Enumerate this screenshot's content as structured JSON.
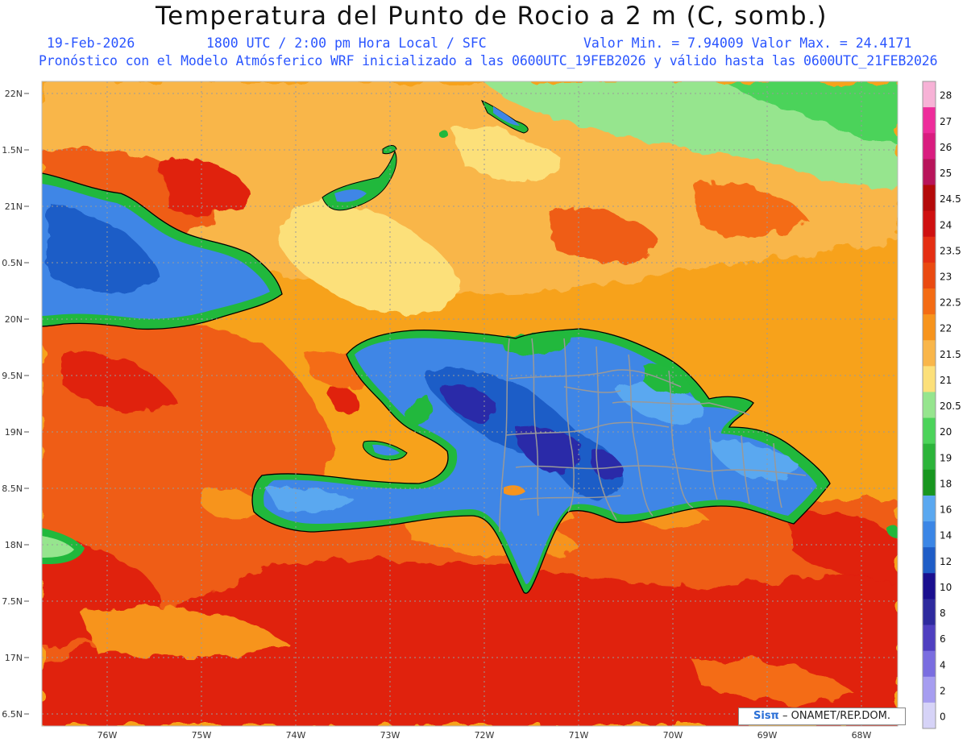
{
  "header": {
    "title": "Temperatura del Punto de Rocio a 2 m (C, somb.)",
    "date": "19-Feb-2026",
    "time": "1800 UTC / 2:00 pm Hora Local / SFC",
    "minmax": "Valor Min. = 7.94009  Valor Max. = 24.4171",
    "model_info": "Pronóstico con el Modelo Atmósferico WRF inicializado a las 0600UTC_19FEB2026 y válido hasta las  0600UTC_21FEB2026"
  },
  "map": {
    "lat_labels": [
      "22N",
      "1.5N",
      "21N",
      "0.5N",
      "20N",
      "9.5N",
      "19N",
      "8.5N",
      "18N",
      "7.5N",
      "17N",
      "6.5N"
    ],
    "lon_labels": [
      "76W",
      "75W",
      "74W",
      "73W",
      "72W",
      "71W",
      "70W",
      "69W",
      "68W"
    ],
    "colors": {
      "ocean_warm": "#f7a21b",
      "ocean_hot": "#ef5d14",
      "ocean_very_hot": "#e0200f",
      "land_cool": "#3f86e6",
      "land_cold": "#2b2aa8",
      "coast_green": "#21b83c",
      "pale": "#f9e27c",
      "light_green": "#8fe28c"
    },
    "credit": {
      "logo": "Sisπ",
      "text": " – ONAMET/REP.DOM."
    }
  },
  "colorbar": {
    "labels": [
      "28",
      "27",
      "26",
      "25",
      "24.5",
      "24",
      "23.5",
      "23",
      "22.5",
      "22",
      "21.5",
      "21",
      "20.5",
      "20",
      "19",
      "18",
      "16",
      "14",
      "12",
      "10",
      "8",
      "6",
      "4",
      "2",
      "0"
    ],
    "colors": [
      "#f7b2d6",
      "#ee2c9b",
      "#d91c7f",
      "#b8145a",
      "#b40a0a",
      "#cf1010",
      "#e52f13",
      "#ea4a11",
      "#f46c14",
      "#f7941d",
      "#f9b64a",
      "#fce07a",
      "#96e58e",
      "#4cd35a",
      "#2cb43a",
      "#18961f",
      "#5aa8f0",
      "#3b86e6",
      "#1f5dc7",
      "#1a0f8f",
      "#2e2a9e",
      "#4f3fc0",
      "#7a6de0",
      "#a69df0",
      "#d6d3f7"
    ]
  }
}
